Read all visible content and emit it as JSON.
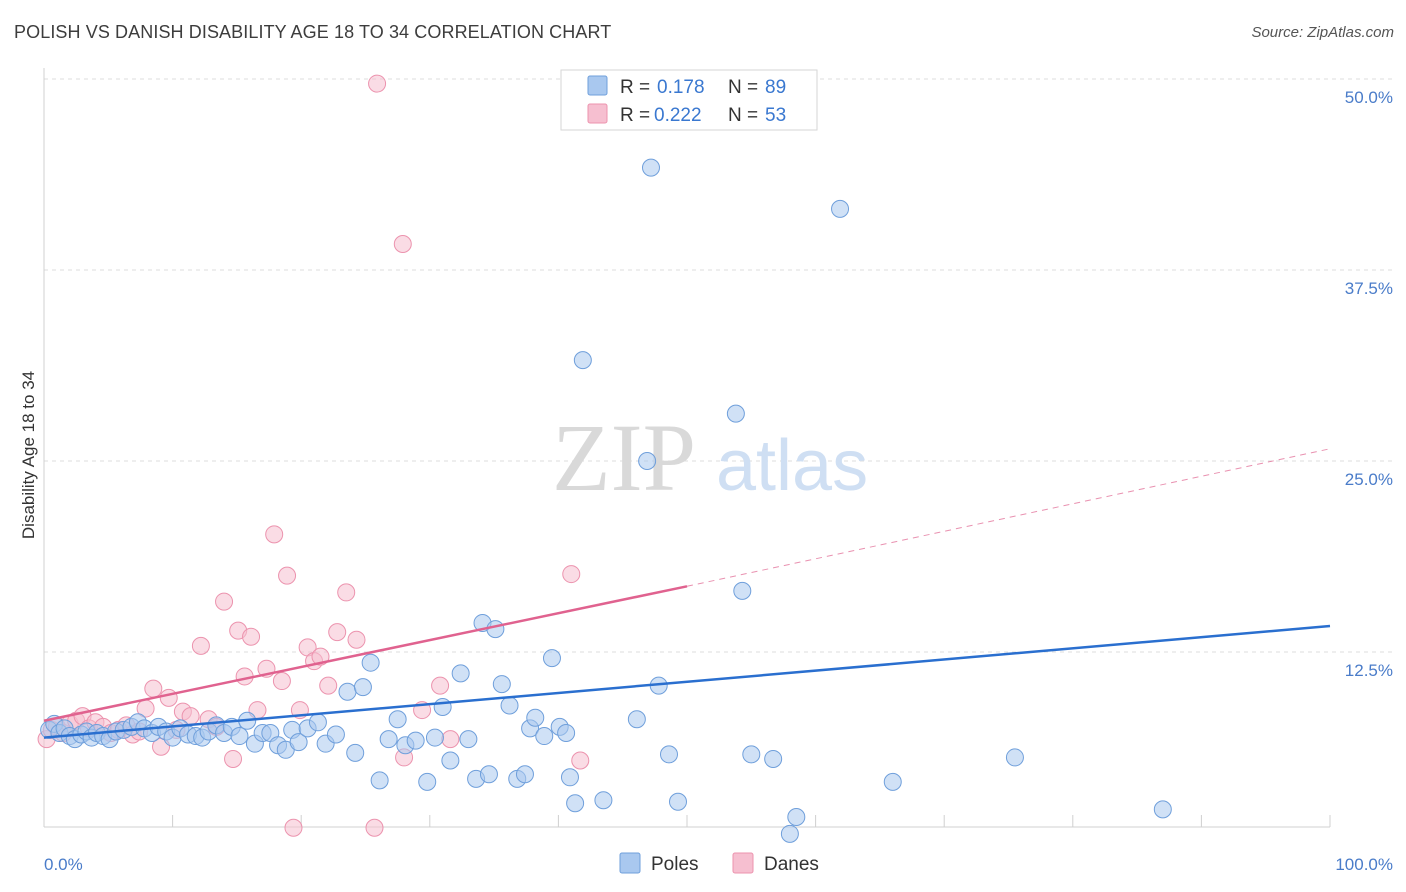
{
  "title": "POLISH VS DANISH DISABILITY AGE 18 TO 34 CORRELATION CHART",
  "source": "Source: ZipAtlas.com",
  "watermark": {
    "zip": "ZIP",
    "atlas": "atlas"
  },
  "colors": {
    "poles_fill": "#a9c8ef",
    "poles_stroke": "#6f9fdb",
    "poles_line": "#2a6fcf",
    "danes_fill": "#f6bfd0",
    "danes_stroke": "#ec93ae",
    "danes_line": "#e0628f",
    "grid": "#dcdcdc",
    "tick_text": "#4a7cc9"
  },
  "legend": {
    "rows": [
      {
        "r_label": "R =",
        "r_value": "0.178",
        "n_label": "N =",
        "n_value": "89"
      },
      {
        "r_label": "R =",
        "r_value": "0.222",
        "n_label": "N =",
        "n_value": "53"
      }
    ],
    "bottom": [
      "Poles",
      "Danes"
    ]
  },
  "chart_data": {
    "type": "scatter",
    "title": "POLISH VS DANISH DISABILITY AGE 18 TO 34 CORRELATION CHART",
    "xlabel": "",
    "ylabel": "Disability Age 18 to 34",
    "xlim": [
      0,
      100
    ],
    "ylim": [
      0,
      52
    ],
    "x_tick_labels": [
      "0.0%",
      "100.0%"
    ],
    "y_ticks": [
      12.5,
      25.0,
      37.5,
      50.0
    ],
    "y_tick_labels": [
      "12.5%",
      "25.0%",
      "37.5%",
      "50.0%"
    ],
    "grid": "horizontal dashed",
    "legend_position": "top-center",
    "series": [
      {
        "name": "Poles",
        "trend": {
          "x": [
            0,
            100
          ],
          "y": [
            6.9,
            14.2
          ]
        },
        "points": [
          [
            0.4,
            7.4
          ],
          [
            0.8,
            7.8
          ],
          [
            1.2,
            7.2
          ],
          [
            1.6,
            7.5
          ],
          [
            2.0,
            7.0
          ],
          [
            2.4,
            6.8
          ],
          [
            2.9,
            7.1
          ],
          [
            3.3,
            7.3
          ],
          [
            3.7,
            6.9
          ],
          [
            4.1,
            7.2
          ],
          [
            4.6,
            7.0
          ],
          [
            5.1,
            6.8
          ],
          [
            5.6,
            7.3
          ],
          [
            6.2,
            7.4
          ],
          [
            6.8,
            7.6
          ],
          [
            7.3,
            7.9
          ],
          [
            7.8,
            7.5
          ],
          [
            8.4,
            7.2
          ],
          [
            8.9,
            7.6
          ],
          [
            9.5,
            7.3
          ],
          [
            10.0,
            6.9
          ],
          [
            10.6,
            7.5
          ],
          [
            11.2,
            7.1
          ],
          [
            11.8,
            7.0
          ],
          [
            12.3,
            6.9
          ],
          [
            12.8,
            7.3
          ],
          [
            13.4,
            7.7
          ],
          [
            14.0,
            7.2
          ],
          [
            14.6,
            7.6
          ],
          [
            15.2,
            7.0
          ],
          [
            15.8,
            8.0
          ],
          [
            16.4,
            6.5
          ],
          [
            17.0,
            7.2
          ],
          [
            17.6,
            7.2
          ],
          [
            18.2,
            6.4
          ],
          [
            18.8,
            6.1
          ],
          [
            19.3,
            7.4
          ],
          [
            19.8,
            6.6
          ],
          [
            20.5,
            7.5
          ],
          [
            21.3,
            7.9
          ],
          [
            21.9,
            6.5
          ],
          [
            22.7,
            7.1
          ],
          [
            23.6,
            9.9
          ],
          [
            24.2,
            5.9
          ],
          [
            24.8,
            10.2
          ],
          [
            25.4,
            11.8
          ],
          [
            26.1,
            4.1
          ],
          [
            26.8,
            6.8
          ],
          [
            27.5,
            8.1
          ],
          [
            28.1,
            6.4
          ],
          [
            28.9,
            6.7
          ],
          [
            29.8,
            4.0
          ],
          [
            30.4,
            6.9
          ],
          [
            31.0,
            8.9
          ],
          [
            31.6,
            5.4
          ],
          [
            32.4,
            11.1
          ],
          [
            33.0,
            6.8
          ],
          [
            33.6,
            4.2
          ],
          [
            34.1,
            14.4
          ],
          [
            34.6,
            4.5
          ],
          [
            35.1,
            14.0
          ],
          [
            35.6,
            10.4
          ],
          [
            36.2,
            9.0
          ],
          [
            36.8,
            4.2
          ],
          [
            37.4,
            4.5
          ],
          [
            37.8,
            7.5
          ],
          [
            38.2,
            8.2
          ],
          [
            38.9,
            7.0
          ],
          [
            39.5,
            12.1
          ],
          [
            40.1,
            7.6
          ],
          [
            40.6,
            7.2
          ],
          [
            40.9,
            4.3
          ],
          [
            41.3,
            2.6
          ],
          [
            41.9,
            31.6
          ],
          [
            43.5,
            2.8
          ],
          [
            46.1,
            8.1
          ],
          [
            46.9,
            25.0
          ],
          [
            47.2,
            44.2
          ],
          [
            47.8,
            10.3
          ],
          [
            48.6,
            5.8
          ],
          [
            49.3,
            2.7
          ],
          [
            53.8,
            28.1
          ],
          [
            54.3,
            16.5
          ],
          [
            55.0,
            5.8
          ],
          [
            56.7,
            5.5
          ],
          [
            58.0,
            0.6
          ],
          [
            58.5,
            1.7
          ],
          [
            61.9,
            41.5
          ],
          [
            66.0,
            4.0
          ],
          [
            75.5,
            5.6
          ],
          [
            87.0,
            2.2
          ]
        ]
      },
      {
        "name": "Danes",
        "trend": {
          "x": [
            0,
            50
          ],
          "y": [
            8.0,
            16.8
          ]
        },
        "trend_dashed": {
          "x": [
            50,
            100
          ],
          "y": [
            16.8,
            25.8
          ]
        },
        "points": [
          [
            0.2,
            6.8
          ],
          [
            0.6,
            7.4
          ],
          [
            1.0,
            7.6
          ],
          [
            1.5,
            7.2
          ],
          [
            2.0,
            7.8
          ],
          [
            2.5,
            8.0
          ],
          [
            3.0,
            8.3
          ],
          [
            3.5,
            7.5
          ],
          [
            4.0,
            7.9
          ],
          [
            4.6,
            7.6
          ],
          [
            5.2,
            7.2
          ],
          [
            5.8,
            7.4
          ],
          [
            6.4,
            7.7
          ],
          [
            6.9,
            7.1
          ],
          [
            7.4,
            7.3
          ],
          [
            7.9,
            8.8
          ],
          [
            8.5,
            10.1
          ],
          [
            9.1,
            6.3
          ],
          [
            9.7,
            9.5
          ],
          [
            10.3,
            7.4
          ],
          [
            10.8,
            8.6
          ],
          [
            11.4,
            8.3
          ],
          [
            12.2,
            12.9
          ],
          [
            12.8,
            8.1
          ],
          [
            13.4,
            7.6
          ],
          [
            14.0,
            15.8
          ],
          [
            14.7,
            5.5
          ],
          [
            15.1,
            13.9
          ],
          [
            15.6,
            10.9
          ],
          [
            16.1,
            13.5
          ],
          [
            16.6,
            8.7
          ],
          [
            17.3,
            11.4
          ],
          [
            17.9,
            20.2
          ],
          [
            18.5,
            10.6
          ],
          [
            18.9,
            17.5
          ],
          [
            19.4,
            1.0
          ],
          [
            19.9,
            8.7
          ],
          [
            20.5,
            12.8
          ],
          [
            21.0,
            11.9
          ],
          [
            21.5,
            12.2
          ],
          [
            22.1,
            10.3
          ],
          [
            22.8,
            13.8
          ],
          [
            23.5,
            16.4
          ],
          [
            24.3,
            13.3
          ],
          [
            25.7,
            1.0
          ],
          [
            25.9,
            49.7
          ],
          [
            27.9,
            39.2
          ],
          [
            28.0,
            5.6
          ],
          [
            29.4,
            8.7
          ],
          [
            30.8,
            10.3
          ],
          [
            31.6,
            6.8
          ],
          [
            41.0,
            17.6
          ],
          [
            41.7,
            5.4
          ]
        ]
      }
    ]
  }
}
